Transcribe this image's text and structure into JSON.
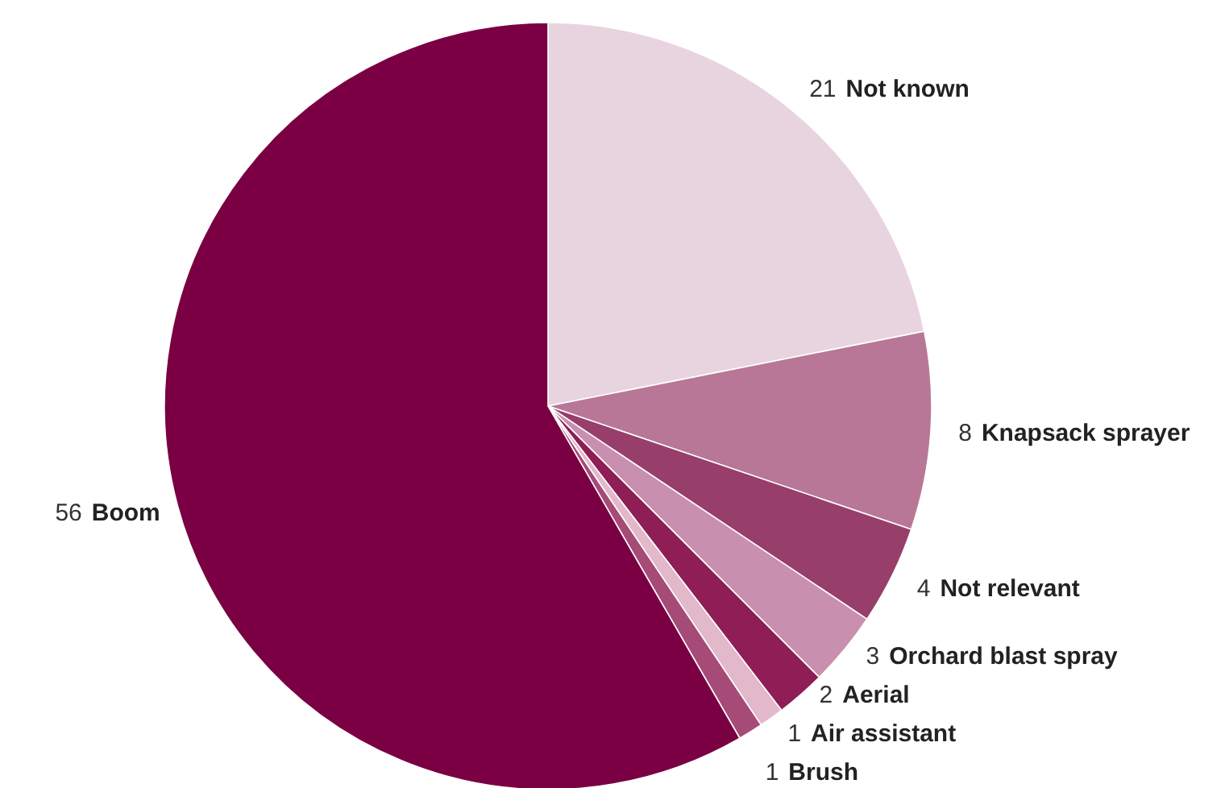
{
  "chart_data": {
    "type": "pie",
    "categories": [
      "Not known",
      "Knapsack sprayer",
      "Not relevant",
      "Orchard blast spray",
      "Aerial",
      "Air assistant",
      "Brush",
      "Boom"
    ],
    "values": [
      21,
      8,
      4,
      3,
      2,
      1,
      1,
      56
    ],
    "colors": [
      "#e8d4de",
      "#b87797",
      "#973e6a",
      "#c98fae",
      "#8e1e55",
      "#e3b8cb",
      "#a64a78",
      "#7a0043"
    ],
    "data_labels": true
  }
}
